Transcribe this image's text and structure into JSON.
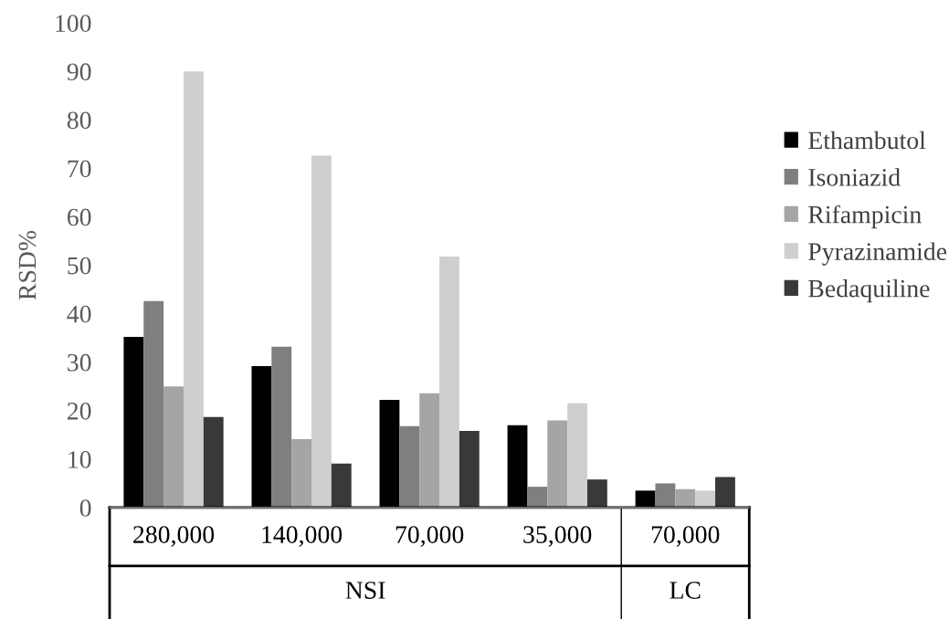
{
  "chart_data": {
    "type": "bar",
    "ylabel": "RSD%",
    "categories": [
      "280,000",
      "140,000",
      "70,000",
      "35,000",
      "70,000"
    ],
    "series": [
      {
        "name": "Ethambutol",
        "color": "#000000",
        "values": [
          35.2,
          29.2,
          22.2,
          17,
          3.5
        ]
      },
      {
        "name": "Isoniazid",
        "color": "#7f7f7f",
        "values": [
          42.6,
          33.2,
          16.8,
          4.3,
          5
        ]
      },
      {
        "name": "Rifampicin",
        "color": "#a5a5a5",
        "values": [
          25,
          14.1,
          23.6,
          18,
          3.8
        ]
      },
      {
        "name": "Pyrazinamide",
        "color": "#d0cece",
        "values": [
          90,
          72.6,
          51.8,
          21.5,
          3.5
        ]
      },
      {
        "name": "Bedaquiline",
        "color": "#3b3838",
        "values": [
          18.7,
          9.1,
          15.8,
          5.8,
          6.3
        ]
      }
    ],
    "annotations": [
      "NSI",
      "LC"
    ],
    "ylim": [
      0,
      100
    ],
    "yticks": [
      0,
      10,
      20,
      30,
      40,
      50,
      60,
      70,
      80,
      90,
      100
    ],
    "grid": false,
    "legend": "right"
  }
}
